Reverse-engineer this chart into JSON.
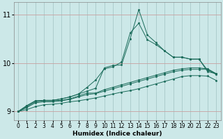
{
  "xlabel": "Humidex (Indice chaleur)",
  "bg_color": "#cce8e8",
  "grid_color_h": "#c8a0a0",
  "grid_color_v": "#a8c8c8",
  "line_color": "#1a6b5a",
  "xlim": [
    -0.5,
    23.5
  ],
  "ylim": [
    8.82,
    11.25
  ],
  "yticks": [
    9,
    10,
    11
  ],
  "xticks": [
    0,
    1,
    2,
    3,
    4,
    5,
    6,
    7,
    8,
    9,
    10,
    11,
    12,
    13,
    14,
    15,
    16,
    17,
    18,
    19,
    20,
    21,
    22,
    23
  ],
  "series": [
    [
      9.0,
      9.12,
      9.22,
      9.23,
      9.23,
      9.26,
      9.3,
      9.36,
      9.42,
      9.48,
      9.9,
      9.95,
      9.96,
      10.5,
      11.1,
      10.58,
      10.42,
      10.25,
      10.12,
      10.12,
      10.08,
      10.08,
      9.82,
      9.78
    ],
    [
      9.0,
      9.12,
      9.22,
      9.23,
      9.23,
      9.26,
      9.3,
      9.36,
      9.5,
      9.65,
      9.88,
      9.92,
      10.02,
      10.62,
      10.82,
      10.48,
      10.38,
      10.25,
      10.12,
      10.12,
      10.08,
      10.08,
      9.85,
      9.78
    ],
    [
      9.0,
      9.1,
      9.2,
      9.22,
      9.22,
      9.23,
      9.26,
      9.32,
      9.38,
      9.38,
      9.45,
      9.5,
      9.55,
      9.6,
      9.65,
      9.7,
      9.75,
      9.8,
      9.85,
      9.88,
      9.9,
      9.9,
      9.88,
      9.78
    ],
    [
      9.0,
      9.08,
      9.18,
      9.2,
      9.2,
      9.22,
      9.25,
      9.3,
      9.35,
      9.37,
      9.42,
      9.47,
      9.52,
      9.57,
      9.62,
      9.67,
      9.72,
      9.77,
      9.82,
      9.85,
      9.87,
      9.87,
      9.87,
      9.76
    ],
    [
      9.0,
      9.04,
      9.1,
      9.14,
      9.15,
      9.17,
      9.2,
      9.22,
      9.25,
      9.28,
      9.32,
      9.36,
      9.4,
      9.43,
      9.47,
      9.52,
      9.57,
      9.62,
      9.67,
      9.72,
      9.74,
      9.74,
      9.73,
      9.64
    ]
  ]
}
